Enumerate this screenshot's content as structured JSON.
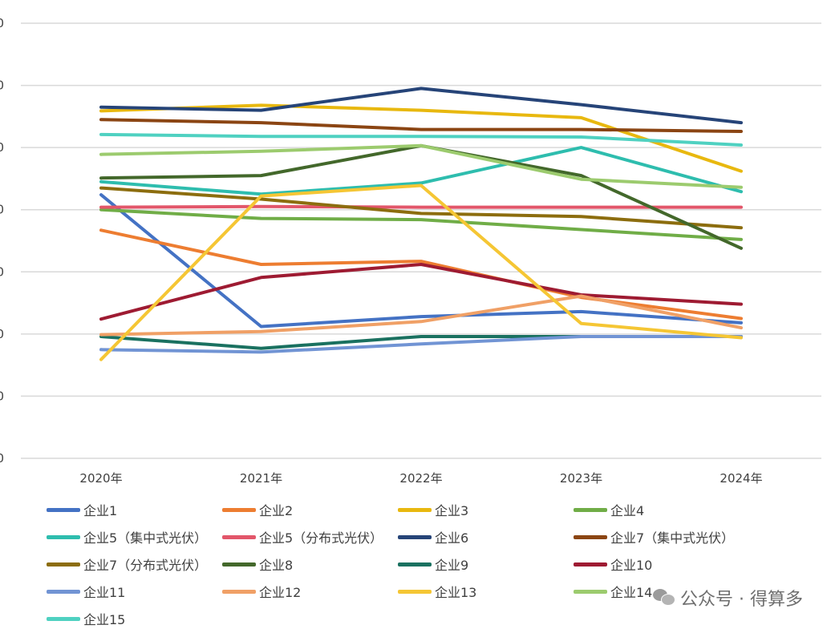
{
  "chart_data": {
    "type": "line",
    "x": [
      "2020年",
      "2021年",
      "2022年",
      "2023年",
      "2024年"
    ],
    "y_tick_labels": [
      "0",
      "0",
      "0",
      "0",
      "0",
      "0",
      "0",
      "0"
    ],
    "ylim": [
      0,
      7
    ],
    "grid": true,
    "legend_position": "bottom",
    "series": [
      {
        "name": "企业1",
        "color": "#4472C4",
        "values": [
          4.24,
          2.12,
          2.28,
          2.36,
          2.18
        ]
      },
      {
        "name": "企业2",
        "color": "#ED7D31",
        "values": [
          3.67,
          3.12,
          3.17,
          2.59,
          2.25
        ]
      },
      {
        "name": "企业3",
        "color": "#E8B80F",
        "values": [
          5.59,
          5.68,
          5.6,
          5.48,
          4.62
        ]
      },
      {
        "name": "企业4",
        "color": "#70AD47",
        "values": [
          4.0,
          3.86,
          3.84,
          3.68,
          3.52
        ]
      },
      {
        "name": "企业5（集中式光伏）",
        "color": "#2EBDAE",
        "values": [
          4.45,
          4.25,
          4.43,
          5.0,
          4.29
        ]
      },
      {
        "name": "企业5（分布式光伏）",
        "color": "#E2566A",
        "values": [
          4.04,
          4.05,
          4.04,
          4.04,
          4.04
        ]
      },
      {
        "name": "企业6",
        "color": "#264478",
        "values": [
          5.65,
          5.6,
          5.95,
          5.69,
          5.4
        ]
      },
      {
        "name": "企业7（集中式光伏）",
        "color": "#8B4513",
        "values": [
          5.45,
          5.4,
          5.29,
          5.29,
          5.26
        ]
      },
      {
        "name": "企业7（分布式光伏）",
        "color": "#8C6D0E",
        "values": [
          4.35,
          4.17,
          3.94,
          3.89,
          3.71
        ]
      },
      {
        "name": "企业8",
        "color": "#43682B",
        "values": [
          4.51,
          4.55,
          5.03,
          4.55,
          3.38
        ]
      },
      {
        "name": "企业9",
        "color": "#1A7160",
        "values": [
          1.96,
          1.77,
          1.96,
          1.96,
          1.96
        ]
      },
      {
        "name": "企业10",
        "color": "#9E1B32",
        "values": [
          2.24,
          2.91,
          3.12,
          2.63,
          2.48
        ]
      },
      {
        "name": "企业11",
        "color": "#7194D4",
        "values": [
          1.75,
          1.71,
          1.84,
          1.96,
          1.96
        ]
      },
      {
        "name": "企业12",
        "color": "#F0A066",
        "values": [
          1.99,
          2.04,
          2.2,
          2.61,
          2.1
        ]
      },
      {
        "name": "企业13",
        "color": "#F5C634",
        "values": [
          1.59,
          4.22,
          4.39,
          2.17,
          1.94
        ]
      },
      {
        "name": "企业14",
        "color": "#9CCB6E",
        "values": [
          4.89,
          4.94,
          5.03,
          4.49,
          4.36
        ]
      },
      {
        "name": "企业15",
        "color": "#4FD1C1",
        "values": [
          5.21,
          5.18,
          5.18,
          5.17,
          5.04
        ]
      }
    ]
  },
  "watermark": {
    "text": "公众号 · 得算多",
    "icon": "wechat-icon"
  }
}
